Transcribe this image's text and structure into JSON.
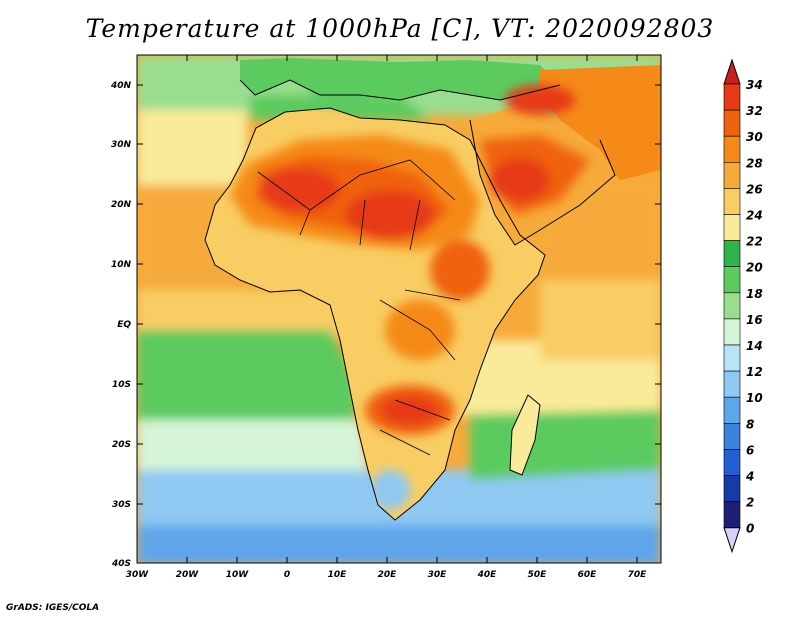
{
  "title": "Temperature at 1000hPa [C], VT: 2020092803",
  "footer": "GrADS: IGES/COLA",
  "lat_labels": [
    "40N",
    "30N",
    "20N",
    "10N",
    "EQ",
    "10S",
    "20S",
    "30S",
    "40S"
  ],
  "lon_labels": [
    "30W",
    "20W",
    "10W",
    "0",
    "10E",
    "20E",
    "30E",
    "40E",
    "50E",
    "60E",
    "70E"
  ],
  "colorbar": {
    "labels": [
      "34",
      "32",
      "30",
      "28",
      "26",
      "24",
      "22",
      "20",
      "18",
      "16",
      "14",
      "12",
      "10",
      "8",
      "6",
      "4",
      "2",
      "0"
    ],
    "colors": [
      "#c8201e",
      "#e63a16",
      "#f0620e",
      "#f58a19",
      "#f6aa3a",
      "#f8cd63",
      "#faeb9a",
      "#2fb34a",
      "#5ccb5f",
      "#99de8f",
      "#d6f5d8",
      "#b7e4f8",
      "#8fc9f2",
      "#5ea6ea",
      "#3a82dd",
      "#235fd0",
      "#163aa6",
      "#1b1f78",
      "#d8d0f6"
    ]
  },
  "map": {
    "extent": {
      "lon_min": -30,
      "lon_max": 75,
      "lat_min": -40,
      "lat_max": 45
    },
    "ocean_bands": [
      {
        "label": "mediterranean",
        "color": "#5ccb5f"
      },
      {
        "label": "north-atlantic",
        "color": "#99de8f"
      },
      {
        "label": "subtropical-atlantic",
        "color": "#faeb9a"
      },
      {
        "label": "tropical-atlantic",
        "color": "#f8cd63"
      },
      {
        "label": "gulf-of-guinea",
        "color": "#f6aa3a"
      },
      {
        "label": "south-atlantic",
        "color": "#5ccb5f"
      },
      {
        "label": "cool-south-atlantic",
        "color": "#d6f5d8"
      },
      {
        "label": "southern-ocean",
        "color": "#8fc9f2"
      },
      {
        "label": "far-south",
        "color": "#5ea6ea"
      },
      {
        "label": "indian-ocean",
        "color": "#f6aa3a"
      },
      {
        "label": "arabian-sea",
        "color": "#f6aa3a"
      }
    ]
  }
}
